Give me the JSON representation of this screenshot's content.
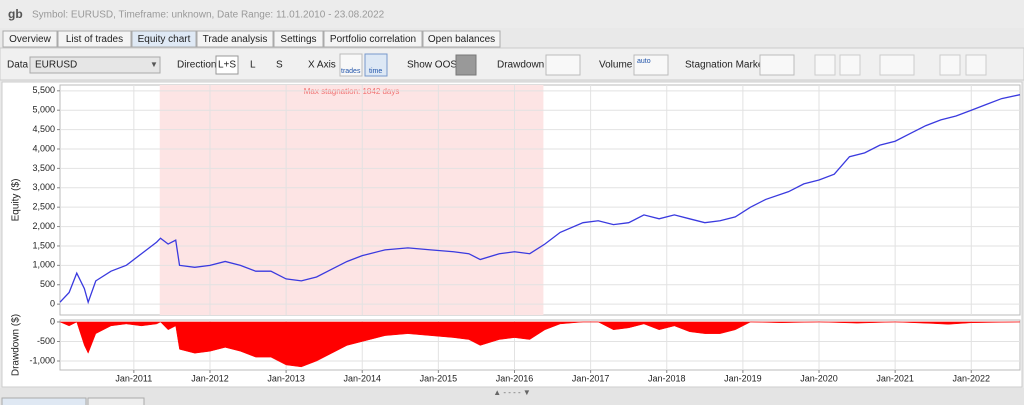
{
  "header": {
    "title": "gb",
    "subtitle": "Symbol: EURUSD, Timeframe: unknown, Date Range: 11.01.2010 - 23.08.2022"
  },
  "tabs": [
    "Overview",
    "List of trades",
    "Equity chart",
    "Trade analysis",
    "Settings",
    "Portfolio correlation",
    "Open balances"
  ],
  "toolbar": {
    "data_label": "Data",
    "data_value": "EURUSD",
    "direction": "Direction",
    "direction_options": [
      "L+S",
      "L",
      "S"
    ],
    "x_axis": "X Axis",
    "x_axis_options": [
      "trades",
      "time"
    ],
    "show_oos": "Show OOS",
    "drawdown": "Drawdown",
    "volume": "Volume",
    "volume_icon": "auto",
    "stagnation": "Stagnation Marker"
  },
  "chart_data": [
    {
      "type": "line",
      "ylabel": "Equity ($)",
      "color": "#3a3adf",
      "grid": true,
      "xlim": [
        2010.03,
        2022.64
      ],
      "ylim": [
        -280,
        5650
      ],
      "yticks": [
        0,
        500,
        {
          "value": 1000,
          "label": "1,000"
        },
        {
          "value": 1500,
          "label": "1,500"
        },
        {
          "value": 2000,
          "label": "2,000"
        },
        {
          "value": 2500,
          "label": "2,500"
        },
        {
          "value": 3000,
          "label": "3,000"
        },
        {
          "value": 3500,
          "label": "3,500"
        },
        {
          "value": 4000,
          "label": "4,000"
        },
        {
          "value": 4500,
          "label": "4,500"
        },
        {
          "value": 5000,
          "label": "5,000"
        },
        {
          "value": 5500,
          "label": "5,500"
        }
      ],
      "stagnation": {
        "label": "Max stagnation: 1842 days",
        "start": 2011.34,
        "end": 2016.38,
        "color": "#fde4e4"
      },
      "x": [
        2010.03,
        2010.15,
        2010.25,
        2010.35,
        2010.4,
        2010.5,
        2010.7,
        2010.9,
        2011.1,
        2011.3,
        2011.35,
        2011.45,
        2011.55,
        2011.6,
        2011.8,
        2012.0,
        2012.2,
        2012.4,
        2012.6,
        2012.8,
        2013.0,
        2013.2,
        2013.4,
        2013.6,
        2013.8,
        2014.0,
        2014.3,
        2014.6,
        2014.9,
        2015.2,
        2015.4,
        2015.55,
        2015.8,
        2016.0,
        2016.2,
        2016.4,
        2016.6,
        2016.9,
        2017.1,
        2017.3,
        2017.5,
        2017.7,
        2017.9,
        2018.1,
        2018.3,
        2018.5,
        2018.7,
        2018.9,
        2019.1,
        2019.3,
        2019.6,
        2019.8,
        2020.0,
        2020.2,
        2020.4,
        2020.6,
        2020.8,
        2021.0,
        2021.2,
        2021.4,
        2021.6,
        2021.8,
        2022.0,
        2022.2,
        2022.4,
        2022.64
      ],
      "values": [
        50,
        300,
        800,
        400,
        50,
        600,
        850,
        1000,
        1300,
        1600,
        1700,
        1550,
        1650,
        1000,
        950,
        1000,
        1100,
        1000,
        850,
        850,
        650,
        600,
        700,
        900,
        1100,
        1250,
        1400,
        1450,
        1400,
        1350,
        1300,
        1150,
        1300,
        1350,
        1300,
        1550,
        1850,
        2100,
        2150,
        2050,
        2100,
        2300,
        2200,
        2300,
        2200,
        2100,
        2150,
        2250,
        2500,
        2700,
        2900,
        3100,
        3200,
        3350,
        3800,
        3900,
        4100,
        4200,
        4400,
        4600,
        4750,
        4850,
        5000,
        5150,
        5300,
        5400
      ]
    },
    {
      "type": "area",
      "ylabel": "Drawdown ($)",
      "color": "#ff0000",
      "grid": true,
      "xlim": [
        2010.03,
        2022.64
      ],
      "ylim": [
        -1230,
        50
      ],
      "yticks": [
        0,
        -500,
        {
          "value": -1000,
          "label": "-1,000"
        }
      ],
      "xticks": [
        {
          "value": 2011.0,
          "label": "Jan-2011"
        },
        {
          "value": 2012.0,
          "label": "Jan-2012"
        },
        {
          "value": 2013.0,
          "label": "Jan-2013"
        },
        {
          "value": 2014.0,
          "label": "Jan-2014"
        },
        {
          "value": 2015.0,
          "label": "Jan-2015"
        },
        {
          "value": 2016.0,
          "label": "Jan-2016"
        },
        {
          "value": 2017.0,
          "label": "Jan-2017"
        },
        {
          "value": 2018.0,
          "label": "Jan-2018"
        },
        {
          "value": 2019.0,
          "label": "Jan-2019"
        },
        {
          "value": 2020.0,
          "label": "Jan-2020"
        },
        {
          "value": 2021.0,
          "label": "Jan-2021"
        },
        {
          "value": 2022.0,
          "label": "Jan-2022"
        }
      ],
      "x": [
        2010.03,
        2010.15,
        2010.25,
        2010.35,
        2010.4,
        2010.5,
        2010.7,
        2010.9,
        2011.1,
        2011.3,
        2011.35,
        2011.45,
        2011.55,
        2011.6,
        2011.8,
        2012.0,
        2012.2,
        2012.4,
        2012.6,
        2012.8,
        2013.0,
        2013.2,
        2013.4,
        2013.6,
        2013.8,
        2014.0,
        2014.3,
        2014.6,
        2014.9,
        2015.2,
        2015.4,
        2015.55,
        2015.8,
        2016.0,
        2016.2,
        2016.4,
        2016.6,
        2016.9,
        2017.1,
        2017.3,
        2017.5,
        2017.7,
        2017.9,
        2018.1,
        2018.3,
        2018.5,
        2018.7,
        2018.9,
        2019.1,
        2019.5,
        2020.0,
        2020.5,
        2021.0,
        2021.5,
        2021.7,
        2022.0,
        2022.64
      ],
      "values": [
        0,
        -100,
        0,
        -600,
        -800,
        -300,
        -100,
        -50,
        -100,
        -50,
        0,
        -200,
        -100,
        -700,
        -800,
        -750,
        -650,
        -750,
        -900,
        -900,
        -1100,
        -1150,
        -1000,
        -800,
        -600,
        -500,
        -350,
        -300,
        -350,
        -400,
        -450,
        -600,
        -450,
        -400,
        -450,
        -200,
        -50,
        0,
        0,
        -200,
        -150,
        -50,
        -200,
        -100,
        -250,
        -300,
        -300,
        -200,
        0,
        -20,
        0,
        -30,
        0,
        -40,
        -60,
        -20,
        0
      ]
    }
  ]
}
